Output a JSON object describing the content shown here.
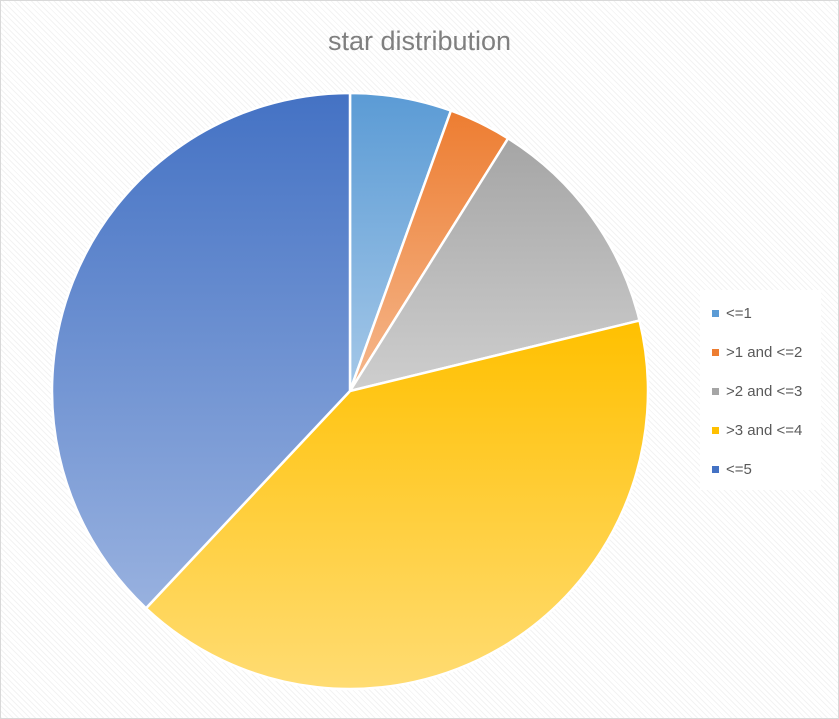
{
  "chart_data": {
    "type": "pie",
    "title": "star distribution",
    "categories": [
      "<=1",
      ">1 and <=2",
      ">2 and <=3",
      ">3 and <=4",
      "<=5"
    ],
    "values": [
      5.5,
      3.4,
      12.3,
      40.8,
      38.0
    ],
    "colors": [
      "#5b9bd5",
      "#ed7d31",
      "#a5a5a5",
      "#ffc000",
      "#4472c4"
    ],
    "legend_position": "right"
  }
}
